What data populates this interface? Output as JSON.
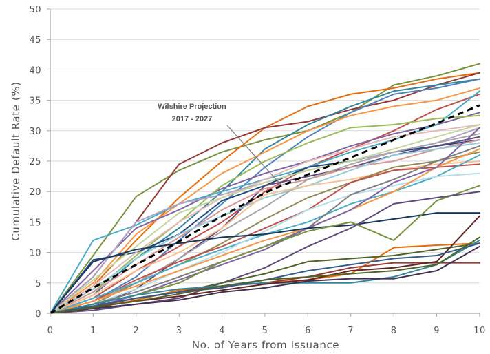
{
  "chart_data": {
    "type": "line",
    "xlabel": "No. of Years from Issuance",
    "ylabel": "Cumulative Default Rate (%)",
    "xlim": [
      0,
      10
    ],
    "ylim": [
      0,
      50
    ],
    "x_ticks": [
      "0",
      "1",
      "2",
      "3",
      "4",
      "5",
      "6",
      "7",
      "8",
      "9",
      "10"
    ],
    "y_ticks": [
      "0",
      "5",
      "10",
      "15",
      "20",
      "25",
      "30",
      "35",
      "40",
      "45",
      "50"
    ],
    "grid": "horizontal",
    "x": [
      0,
      1,
      2,
      3,
      4,
      5,
      6,
      7,
      8,
      9,
      10
    ],
    "projection": {
      "label_line1": "Wilshire Projection",
      "label_line2": "2017 - 2027",
      "values": [
        0,
        4.2,
        8.0,
        11.8,
        16.0,
        19.8,
        22.8,
        25.6,
        28.5,
        31.2,
        34.2
      ]
    },
    "series": [
      {
        "color": "#77933C",
        "values": [
          0,
          9.5,
          19.2,
          23.5,
          26.5,
          28.5,
          30,
          33,
          37.5,
          39,
          41
        ]
      },
      {
        "color": "#E46C0A",
        "values": [
          0,
          4.5,
          12,
          19,
          25,
          30.5,
          34,
          36,
          37,
          38.5,
          39.5
        ]
      },
      {
        "color": "#953735",
        "values": [
          0,
          6,
          15,
          24.5,
          28,
          30.5,
          31.5,
          33.5,
          35,
          37.5,
          39.5
        ]
      },
      {
        "color": "#31859C",
        "values": [
          0,
          3,
          9,
          14,
          20,
          27,
          31,
          34,
          36.5,
          37.5,
          38.5
        ]
      },
      {
        "color": "#4F81BD",
        "values": [
          0,
          2,
          6,
          12,
          18,
          24,
          29,
          33,
          36,
          37,
          38.5
        ]
      },
      {
        "color": "#F79646",
        "values": [
          0,
          5,
          13,
          18,
          23,
          26.5,
          30,
          32.5,
          34,
          35,
          37
        ]
      },
      {
        "color": "#C0504D",
        "values": [
          0,
          2.5,
          7,
          11,
          15,
          20,
          24,
          27,
          30,
          33.5,
          36
        ]
      },
      {
        "color": "#8064A2",
        "values": [
          0,
          7,
          14,
          17,
          20.5,
          23,
          25,
          27.5,
          29.5,
          31,
          33
        ]
      },
      {
        "color": "#9BBB59",
        "values": [
          0,
          3.5,
          9.5,
          15,
          21,
          25,
          28,
          30.5,
          31,
          32,
          32.5
        ]
      },
      {
        "color": "#4BACC6",
        "values": [
          0,
          12,
          14.5,
          18,
          20,
          22,
          24,
          26.5,
          28.5,
          31,
          36.5
        ]
      },
      {
        "color": "#1F497D",
        "values": [
          0,
          8.8,
          10,
          13,
          18.5,
          21,
          24,
          25,
          26.5,
          27.5,
          28.5
        ]
      },
      {
        "color": "#E6B9B8",
        "values": [
          0,
          4.5,
          10,
          15,
          19,
          22,
          25,
          27,
          29,
          30,
          31
        ]
      },
      {
        "color": "#B3A2C7",
        "values": [
          0,
          6,
          15,
          18,
          19.5,
          21.5,
          23.5,
          25,
          26.5,
          28,
          30.5
        ]
      },
      {
        "color": "#604A7B",
        "values": [
          0,
          1,
          4,
          9,
          14,
          21,
          22.5,
          24,
          26,
          27.5,
          29
        ]
      },
      {
        "color": "#D99694",
        "values": [
          0,
          3.5,
          8,
          12.5,
          17,
          20.5,
          22,
          24,
          25,
          27,
          28.5
        ]
      },
      {
        "color": "#93CDDD",
        "values": [
          0,
          4,
          9,
          13,
          16,
          19,
          21,
          23.5,
          26,
          27,
          28
        ]
      },
      {
        "color": "#C3D69B",
        "values": [
          0,
          5.5,
          11,
          16.5,
          19,
          21.5,
          23.5,
          25,
          27,
          29,
          31
        ]
      },
      {
        "color": "#A6A6A6",
        "values": [
          0,
          2,
          5,
          9,
          13.5,
          17.5,
          22,
          24.5,
          26.5,
          28,
          29.5
        ]
      },
      {
        "color": "#FAC090",
        "values": [
          0,
          3,
          7,
          10,
          14,
          19.5,
          21,
          22,
          23.5,
          24.5,
          25
        ]
      },
      {
        "color": "#948A54",
        "values": [
          0,
          1.5,
          5,
          8,
          11.5,
          15.5,
          19,
          21.5,
          24,
          25,
          26.5
        ]
      },
      {
        "color": "#C0504D",
        "values": [
          0,
          2,
          5.5,
          8.5,
          11,
          14,
          17,
          21.5,
          23.5,
          24,
          24.5
        ]
      },
      {
        "color": "#4BACC6",
        "values": [
          0,
          2.5,
          5,
          8,
          10.5,
          13,
          15,
          18,
          20,
          22.5,
          26
        ]
      },
      {
        "color": "#B7DEE8",
        "values": [
          0,
          1.5,
          4,
          7,
          10,
          13.5,
          17,
          19.5,
          21,
          22.5,
          23
        ]
      },
      {
        "color": "#F79646",
        "values": [
          0,
          2,
          4.5,
          7,
          9.5,
          12,
          14,
          17,
          20,
          24,
          27
        ]
      },
      {
        "color": "#7F7F7F",
        "values": [
          0,
          1.5,
          3.5,
          6,
          8.5,
          11,
          14,
          19.5,
          22,
          25,
          27.5
        ]
      },
      {
        "color": "#8064A2",
        "values": [
          0,
          1,
          3,
          5.5,
          8,
          10.5,
          14,
          17,
          21.5,
          24,
          30.5
        ]
      },
      {
        "color": "#17375E",
        "values": [
          0,
          8.5,
          10.5,
          11.5,
          12.5,
          13,
          14,
          14.5,
          15.5,
          16.5,
          16.5
        ]
      },
      {
        "color": "#77933C",
        "values": [
          0,
          1.5,
          3,
          5,
          8.5,
          11,
          13.5,
          15,
          12,
          18.5,
          21
        ]
      },
      {
        "color": "#604A7B",
        "values": [
          0,
          0.5,
          1.5,
          2.5,
          5,
          7.5,
          11,
          14,
          18,
          19,
          20
        ]
      },
      {
        "color": "#E46C0A",
        "values": [
          0,
          0.8,
          2.2,
          3.8,
          4.5,
          5,
          5.5,
          6.5,
          10.8,
          11.2,
          11.5
        ]
      },
      {
        "color": "#4F6228",
        "values": [
          0,
          1.2,
          2.5,
          3.5,
          5,
          6.5,
          8.5,
          9,
          9.5,
          10.5,
          11.5
        ]
      },
      {
        "color": "#953735",
        "values": [
          0,
          1,
          2.5,
          3.5,
          4.5,
          5,
          6,
          7.5,
          8.3,
          8.3,
          8.3
        ]
      },
      {
        "color": "#31859C",
        "values": [
          0,
          1.5,
          3,
          4,
          4.5,
          5,
          5,
          5,
          6,
          8,
          12
        ]
      },
      {
        "color": "#403151",
        "values": [
          0,
          0.8,
          1.5,
          2.2,
          3.5,
          4.2,
          5.3,
          5.7,
          5.7,
          7,
          11
        ]
      },
      {
        "color": "#632523",
        "values": [
          0,
          1,
          2,
          2.8,
          3.8,
          4.8,
          5.5,
          7,
          7.5,
          8.5,
          16
        ]
      },
      {
        "color": "#375A8C",
        "values": [
          0,
          1.2,
          2.5,
          3.5,
          4.2,
          5.5,
          7,
          8,
          9,
          9.5,
          11.5
        ]
      },
      {
        "color": "#4F6228",
        "values": [
          0,
          1,
          2,
          3.2,
          4.5,
          5.5,
          6,
          6.5,
          7,
          8,
          12.5
        ]
      }
    ]
  }
}
